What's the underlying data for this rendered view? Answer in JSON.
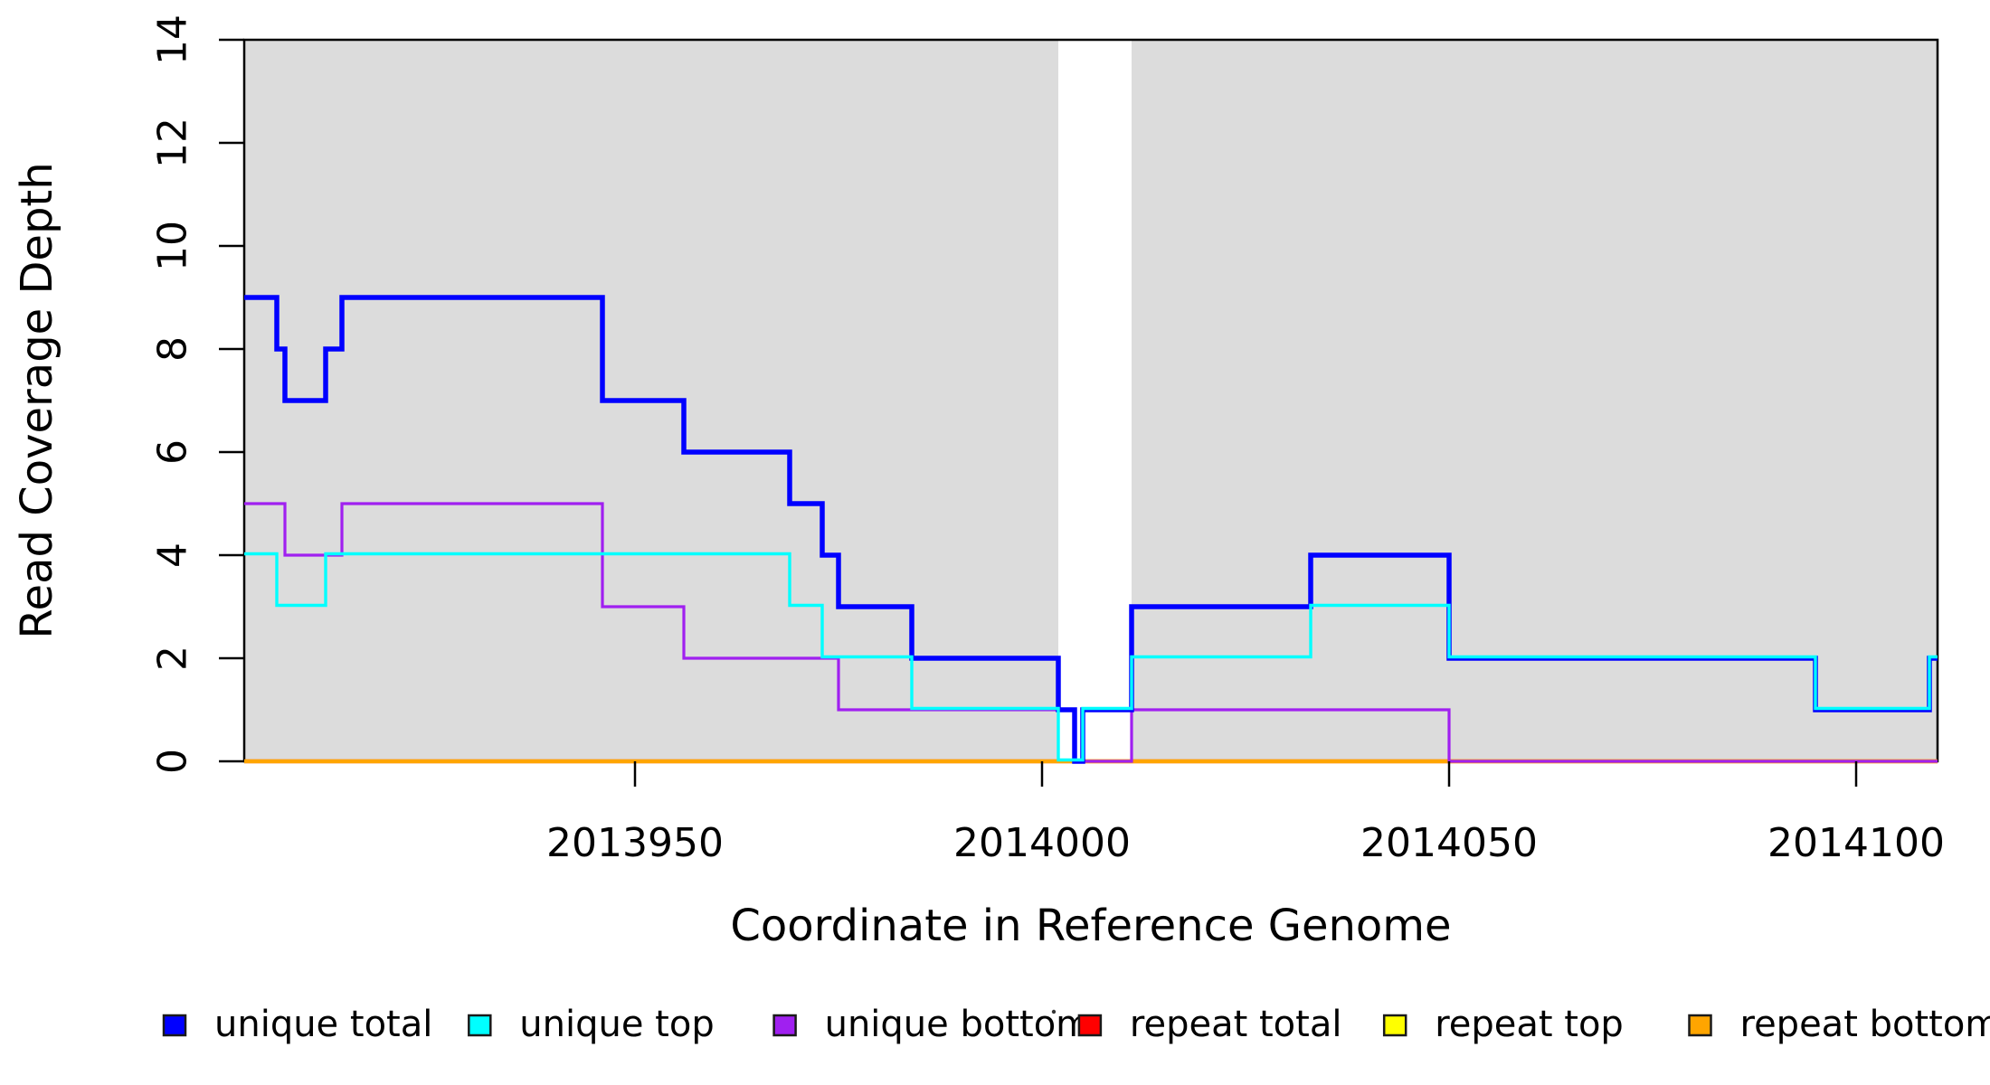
{
  "chart_data": {
    "type": "line",
    "step_style": true,
    "title": "",
    "xlabel": "Coordinate in Reference Genome",
    "ylabel": "Read Coverage Depth",
    "xlim": [
      2013902,
      2014110
    ],
    "ylim": [
      0,
      14
    ],
    "x_ticks": [
      2013950,
      2014000,
      2014050,
      2014100
    ],
    "y_ticks": [
      0,
      2,
      4,
      6,
      8,
      10,
      12,
      14
    ],
    "grid": false,
    "legend_position": "bottom",
    "plot_background": "#FFFFFF",
    "shaded_regions": {
      "color": "#DCDCDC",
      "ranges": [
        [
          2013902,
          2014002
        ],
        [
          2014011,
          2014110
        ]
      ]
    },
    "series": [
      {
        "name": "unique total",
        "color": "#0000FF",
        "x_end": 2014110,
        "steps": [
          [
            2013902,
            9
          ],
          [
            2013906,
            8
          ],
          [
            2013907,
            7
          ],
          [
            2013912,
            8
          ],
          [
            2013914,
            9
          ],
          [
            2013946,
            7
          ],
          [
            2013956,
            6
          ],
          [
            2013969,
            5
          ],
          [
            2013973,
            4
          ],
          [
            2013975,
            3
          ],
          [
            2013984,
            2
          ],
          [
            2014002,
            1
          ],
          [
            2014004,
            0
          ],
          [
            2014005,
            1
          ],
          [
            2014011,
            3
          ],
          [
            2014033,
            4
          ],
          [
            2014050,
            2
          ],
          [
            2014095,
            1
          ],
          [
            2014109,
            2
          ]
        ]
      },
      {
        "name": "unique top",
        "color": "#00FFFF",
        "x_end": 2014110,
        "steps": [
          [
            2013902,
            4
          ],
          [
            2013906,
            3
          ],
          [
            2013912,
            4
          ],
          [
            2013969,
            3
          ],
          [
            2013973,
            2
          ],
          [
            2013984,
            1
          ],
          [
            2014002,
            0
          ],
          [
            2014005,
            1
          ],
          [
            2014011,
            2
          ],
          [
            2014033,
            3
          ],
          [
            2014050,
            2
          ],
          [
            2014095,
            1
          ],
          [
            2014109,
            2
          ]
        ]
      },
      {
        "name": "unique bottom",
        "color": "#A020F0",
        "x_end": 2014110,
        "steps": [
          [
            2013902,
            5
          ],
          [
            2013907,
            4
          ],
          [
            2013914,
            5
          ],
          [
            2013946,
            3
          ],
          [
            2013956,
            2
          ],
          [
            2013975,
            1
          ],
          [
            2014004,
            0
          ],
          [
            2014011,
            1
          ],
          [
            2014050,
            0
          ]
        ]
      },
      {
        "name": "repeat total",
        "color": "#FF0000",
        "x_end": 2014110,
        "steps": [
          [
            2013902,
            0
          ]
        ]
      },
      {
        "name": "repeat top",
        "color": "#FFFF00",
        "x_end": 2014110,
        "steps": [
          [
            2013902,
            0
          ]
        ]
      },
      {
        "name": "repeat bottom",
        "color": "#FFA500",
        "x_end": 2014110,
        "steps": [
          [
            2013902,
            0
          ]
        ]
      }
    ]
  }
}
